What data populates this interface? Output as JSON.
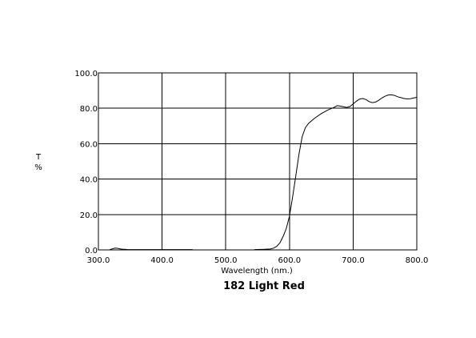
{
  "chart_data": {
    "type": "line",
    "title": "182 Light Red",
    "xlabel": "Wavelength (nm.)",
    "ylabel_top": "T",
    "ylabel_bottom": "%",
    "xlim": [
      300,
      800
    ],
    "ylim": [
      0,
      100
    ],
    "grid": true,
    "xticks": [
      300,
      400,
      500,
      600,
      700,
      800
    ],
    "yticks": [
      0,
      20,
      40,
      60,
      80,
      100
    ],
    "xtick_labels": [
      "300.0",
      "400.0",
      "500.0",
      "600.0",
      "700.0",
      "800.0"
    ],
    "ytick_labels": [
      "0.0",
      "20.0",
      "40.0",
      "60.0",
      "80.0",
      "100.0"
    ],
    "series": [
      {
        "segments": [
          {
            "x": [
              318,
              322,
              326,
              330,
              334,
              338,
              342,
              346,
              350,
              360,
              380,
              400,
              420,
              440,
              448
            ],
            "y": [
              0.2,
              0.6,
              1.0,
              0.9,
              0.6,
              0.4,
              0.3,
              0.2,
              0.2,
              0.2,
              0.2,
              0.2,
              0.2,
              0.2,
              0.2
            ]
          },
          {
            "x": [
              545,
              560,
              570,
              575,
              580,
              585,
              590,
              595,
              600,
              605,
              610,
              615,
              620,
              625,
              630,
              640,
              650,
              660,
              670,
              675,
              680,
              690,
              695,
              700,
              705,
              710,
              715,
              720,
              725,
              730,
              735,
              740,
              745,
              750,
              755,
              760,
              765,
              770,
              775,
              780,
              785,
              790,
              795,
              800
            ],
            "y": [
              0.2,
              0.3,
              0.5,
              1.0,
              2.0,
              4.0,
              7.5,
              12.0,
              19.0,
              30.0,
              42.0,
              54.0,
              64.0,
              69.0,
              71.5,
              74.5,
              77.0,
              79.0,
              80.5,
              81.5,
              81.2,
              80.5,
              81.0,
              82.5,
              84.0,
              85.2,
              85.5,
              85.0,
              83.8,
              83.2,
              83.5,
              84.5,
              85.8,
              86.8,
              87.5,
              87.6,
              87.3,
              86.5,
              86.0,
              85.5,
              85.3,
              85.4,
              85.8,
              86.2
            ]
          }
        ]
      }
    ]
  }
}
